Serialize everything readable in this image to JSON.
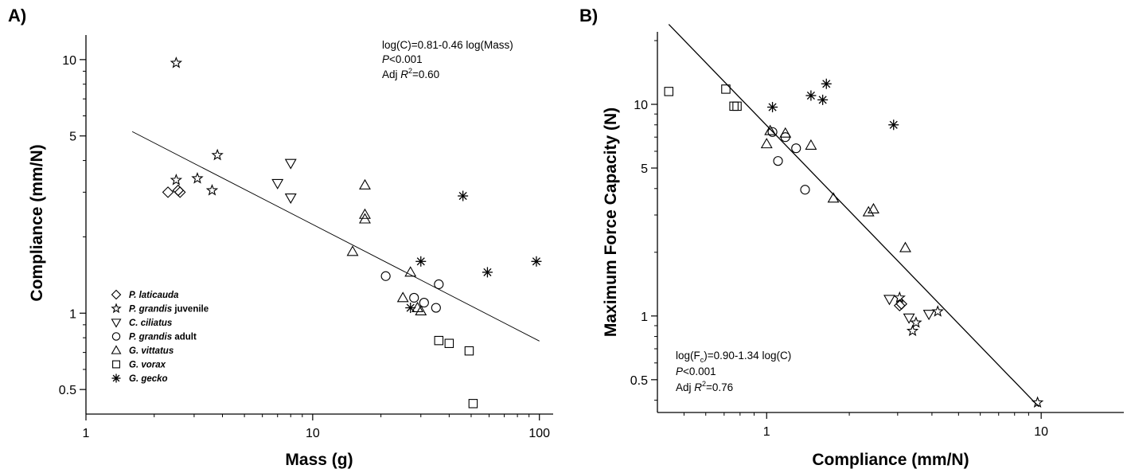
{
  "chart_data": [
    {
      "type": "scatter",
      "panel_label": "A)",
      "title": "",
      "xlabel": "Mass (g)",
      "ylabel": "Compliance (mm/N)",
      "x_scale": "log",
      "y_scale": "log",
      "xlim": [
        1,
        115
      ],
      "ylim": [
        0.4,
        12.5
      ],
      "x_ticks": [
        1,
        10,
        100
      ],
      "x_tick_labels": [
        "1",
        "10",
        "100"
      ],
      "y_ticks": [
        0.5,
        1,
        5,
        10
      ],
      "y_tick_labels": [
        "0.5",
        "1",
        "5",
        "10"
      ],
      "grid": false,
      "legend_position": "bottom-left",
      "annotation_lines": [
        "log(C)=0.81-0.46 log(Mass)",
        "P<0.001",
        "Adj R2=0.60"
      ],
      "annotation_parts": {
        "line1": "log(C)=0.81-0.46 log(Mass)",
        "p_symbol": "P",
        "p_rest": "<0.001",
        "adj": "Adj ",
        "r_symbol": "R",
        "r_sup": "2",
        "r_rest": "=0.60"
      },
      "fit_line": {
        "intercept": 0.81,
        "slope": -0.46,
        "x_range": [
          1.6,
          100
        ]
      },
      "series": [
        {
          "name": "P. laticauda",
          "name_italic": "P. laticauda",
          "name_suffix": "",
          "marker": "diamond",
          "points": [
            [
              2.3,
              3.0
            ],
            [
              2.55,
              3.05
            ],
            [
              2.6,
              3.0
            ]
          ]
        },
        {
          "name": "P. grandis juvenile",
          "name_italic": "P. grandis",
          "name_suffix": " juvenile",
          "marker": "star",
          "points": [
            [
              2.5,
              9.7
            ],
            [
              2.5,
              3.35
            ],
            [
              3.1,
              3.4
            ],
            [
              3.6,
              3.05
            ],
            [
              3.8,
              4.2
            ]
          ]
        },
        {
          "name": "C. ciliatus",
          "name_italic": "C. ciliatus",
          "name_suffix": "",
          "marker": "triangle-down",
          "points": [
            [
              7,
              3.25
            ],
            [
              8,
              3.9
            ],
            [
              8,
              2.85
            ]
          ]
        },
        {
          "name": "P. grandis adult",
          "name_italic": "P. grandis",
          "name_suffix": " adult",
          "marker": "circle",
          "points": [
            [
              21,
              1.4
            ],
            [
              28,
              1.15
            ],
            [
              31,
              1.1
            ],
            [
              35,
              1.05
            ],
            [
              36,
              1.3
            ]
          ]
        },
        {
          "name": "G. vittatus",
          "name_italic": "G. vittatus",
          "name_suffix": "",
          "marker": "triangle-up",
          "points": [
            [
              15,
              1.75
            ],
            [
              17,
              3.2
            ],
            [
              17,
              2.45
            ],
            [
              17,
              2.35
            ],
            [
              25,
              1.15
            ],
            [
              27,
              1.45
            ],
            [
              29,
              1.05
            ],
            [
              30,
              1.02
            ]
          ]
        },
        {
          "name": "G. vorax",
          "name_italic": "G. vorax",
          "name_suffix": "",
          "marker": "square",
          "points": [
            [
              36,
              0.78
            ],
            [
              40,
              0.76
            ],
            [
              49,
              0.71
            ],
            [
              51,
              0.44
            ]
          ]
        },
        {
          "name": "G. gecko",
          "name_italic": "G. gecko",
          "name_suffix": "",
          "marker": "asterisk",
          "points": [
            [
              27,
              1.05
            ],
            [
              30,
              1.6
            ],
            [
              46,
              2.9
            ],
            [
              59,
              1.45
            ],
            [
              97,
              1.6
            ]
          ]
        }
      ]
    },
    {
      "type": "scatter",
      "panel_label": "B)",
      "title": "",
      "xlabel": "Compliance (mm/N)",
      "ylabel": "Maximum Force Capacity (N)",
      "x_scale": "log",
      "y_scale": "log",
      "xlim": [
        0.4,
        20
      ],
      "ylim": [
        0.35,
        22
      ],
      "x_ticks": [
        1,
        10
      ],
      "x_tick_labels": [
        "1",
        "10"
      ],
      "y_ticks": [
        0.5,
        1,
        5,
        10
      ],
      "y_tick_labels": [
        "0.5",
        "1",
        "5",
        "10"
      ],
      "grid": false,
      "annotation_parts": {
        "pre": "log(F",
        "sub": "c",
        "post": ")=0.90-1.34 log(C)",
        "p_symbol": "P",
        "p_rest": "<0.001",
        "adj": "Adj ",
        "r_symbol": "R",
        "r_sup": "2",
        "r_rest": "=0.76"
      },
      "fit_line": {
        "intercept": 0.9,
        "slope": -1.34,
        "x_range": [
          0.44,
          9.8
        ]
      },
      "series": [
        {
          "name": "P. laticauda",
          "marker": "diamond",
          "points": [
            [
              3.05,
              1.12
            ],
            [
              3.1,
              1.14
            ]
          ]
        },
        {
          "name": "P. grandis juvenile",
          "marker": "star",
          "points": [
            [
              9.7,
              0.39
            ],
            [
              3.05,
              1.22
            ],
            [
              4.2,
              1.05
            ],
            [
              3.4,
              0.85
            ],
            [
              3.5,
              0.93
            ]
          ]
        },
        {
          "name": "C. ciliatus",
          "marker": "triangle-down",
          "points": [
            [
              2.8,
              1.2
            ],
            [
              3.3,
              0.98
            ],
            [
              3.9,
              1.02
            ]
          ]
        },
        {
          "name": "P. grandis adult",
          "marker": "circle",
          "points": [
            [
              1.05,
              7.4
            ],
            [
              1.17,
              7.0
            ],
            [
              1.28,
              6.2
            ],
            [
              1.1,
              5.4
            ],
            [
              1.38,
              3.95
            ]
          ]
        },
        {
          "name": "G. vittatus",
          "marker": "triangle-up",
          "points": [
            [
              1.0,
              6.5
            ],
            [
              1.03,
              7.5
            ],
            [
              1.17,
              7.3
            ],
            [
              1.45,
              6.4
            ],
            [
              1.75,
              3.6
            ],
            [
              2.35,
              3.1
            ],
            [
              2.45,
              3.2
            ],
            [
              3.2,
              2.1
            ]
          ]
        },
        {
          "name": "G. vorax",
          "marker": "square",
          "points": [
            [
              0.44,
              11.5
            ],
            [
              0.71,
              11.8
            ],
            [
              0.76,
              9.8
            ],
            [
              0.78,
              9.8
            ]
          ]
        },
        {
          "name": "G. gecko",
          "marker": "asterisk",
          "points": [
            [
              1.05,
              9.7
            ],
            [
              1.45,
              11.0
            ],
            [
              1.6,
              10.5
            ],
            [
              1.65,
              12.5
            ],
            [
              2.9,
              8.0
            ]
          ]
        }
      ]
    }
  ]
}
